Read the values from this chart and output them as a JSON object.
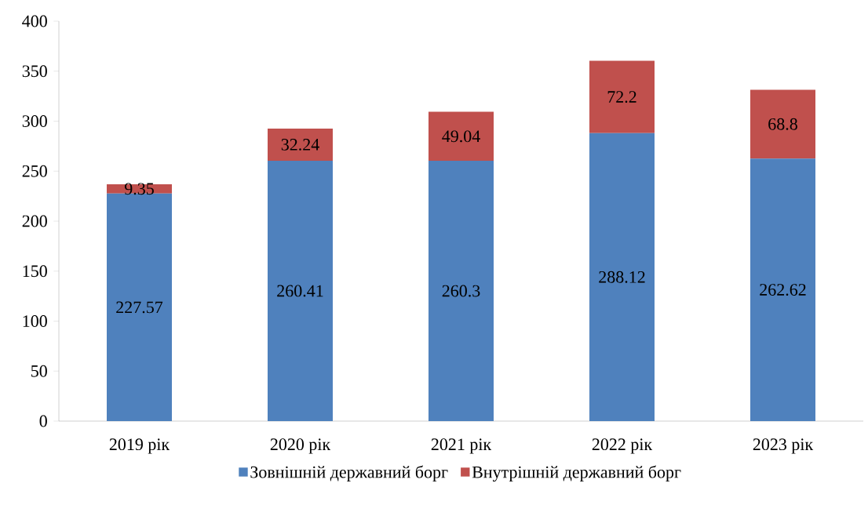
{
  "chart_data": {
    "type": "bar",
    "stacked": true,
    "categories": [
      "2019 рік",
      "2020 рік",
      "2021 рік",
      "2022 рік",
      "2023 рік"
    ],
    "series": [
      {
        "name": "Зовнішній державний борг",
        "color": "#4f81bd",
        "values": [
          227.57,
          260.41,
          260.3,
          288.12,
          262.62
        ]
      },
      {
        "name": "Внутрішній державний борг",
        "color": "#c0504d",
        "values": [
          9.35,
          32.24,
          49.04,
          72.2,
          68.8
        ]
      }
    ],
    "ylim": [
      0,
      400
    ],
    "yticks": [
      0,
      50,
      100,
      150,
      200,
      250,
      300,
      350,
      400
    ],
    "data_labels": true,
    "grid": false,
    "legend": "bottom"
  }
}
